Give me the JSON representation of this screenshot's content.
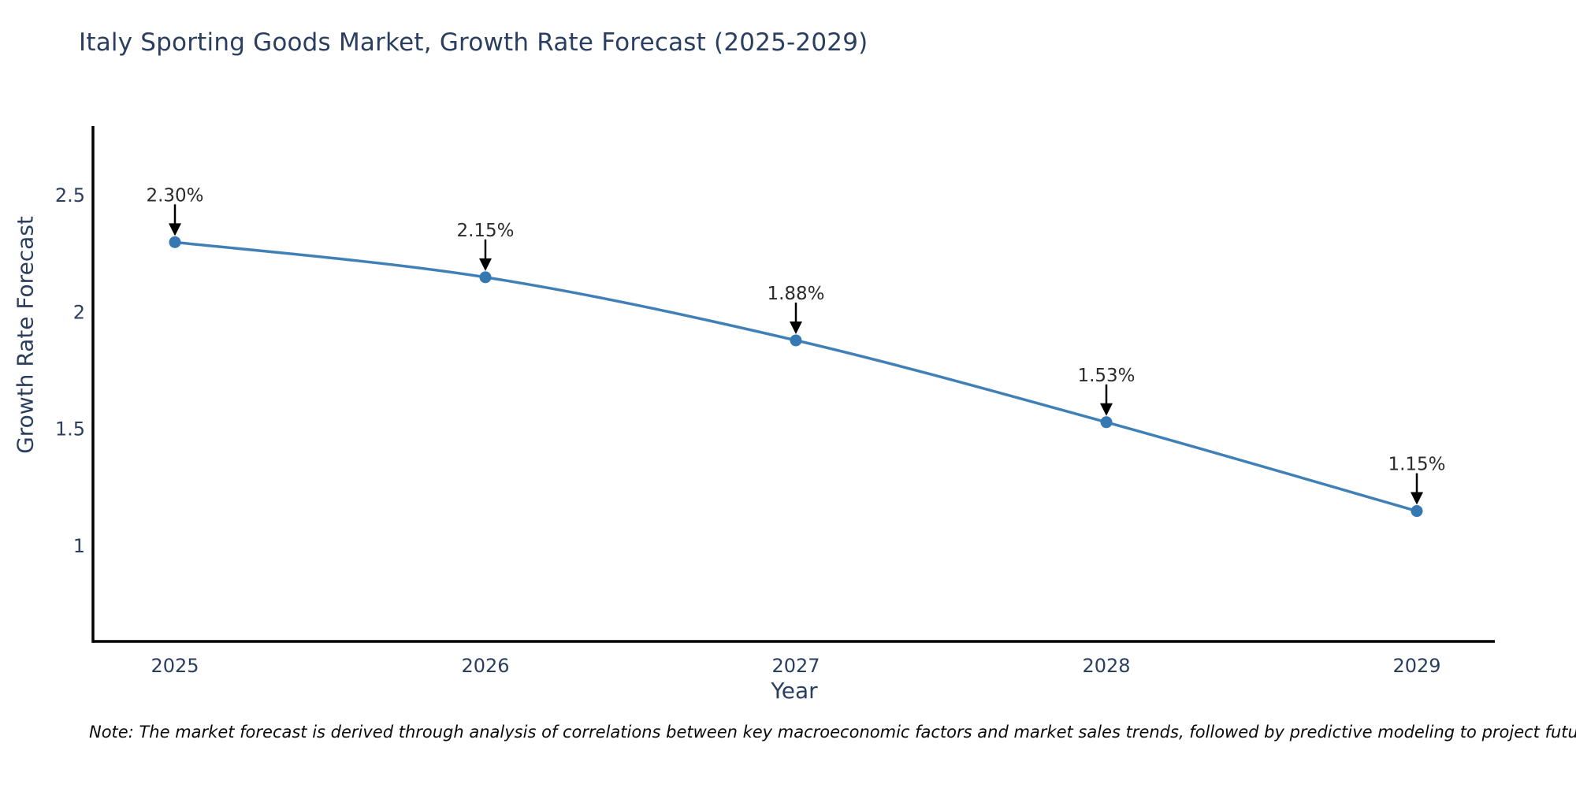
{
  "title": "Italy Sporting Goods Market, Growth Rate Forecast (2025-2029)",
  "note": "Note: The market forecast is derived through analysis of correlations between key macroeconomic factors and market sales trends, followed by predictive modeling to project future sales",
  "chart_data": {
    "type": "line",
    "title": "Italy Sporting Goods Market, Growth Rate Forecast (2025-2029)",
    "xlabel": "Year",
    "ylabel": "Growth Rate Forecast",
    "categories": [
      "2025",
      "2026",
      "2027",
      "2028",
      "2029"
    ],
    "values": [
      2.3,
      2.15,
      1.88,
      1.53,
      1.15
    ],
    "data_labels": [
      "2.30%",
      "2.15%",
      "1.88%",
      "1.53%",
      "1.15%"
    ],
    "yticks": [
      "2.5",
      "2",
      "1.5",
      "1"
    ],
    "ytick_values": [
      2.5,
      2.0,
      1.5,
      1.0
    ],
    "ylim": [
      0.6,
      2.8
    ],
    "grid": false,
    "legend": false,
    "annotation_style": "black-down-arrow",
    "colors": {
      "line": "#4080b6",
      "marker": "#3578b2",
      "arrow": "#000000",
      "axis_line": "#000000",
      "tick_text": "#2a3f5f",
      "annotation_text": "#2b2b2b"
    }
  }
}
